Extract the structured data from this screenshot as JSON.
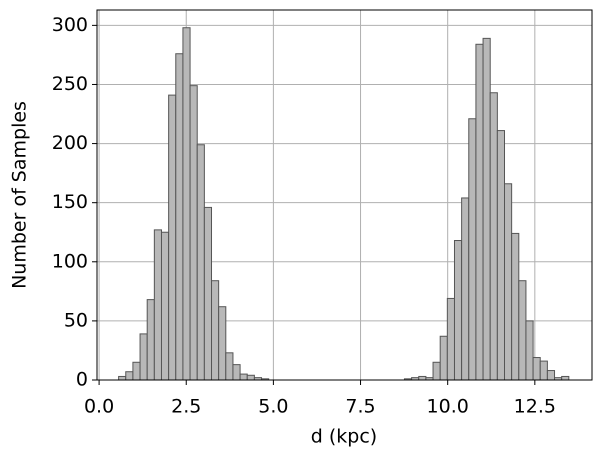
{
  "chart_data": {
    "type": "histogram",
    "xlabel": "d (kpc)",
    "ylabel": "Number of Samples",
    "bins": [
      0.56,
      0.765,
      0.97,
      1.175,
      1.38,
      1.585,
      1.79,
      1.995,
      2.2,
      2.405,
      2.61,
      2.815,
      3.02,
      3.225,
      3.43,
      3.635,
      3.84,
      4.045,
      4.25,
      4.455,
      4.66,
      4.865,
      5.07,
      5.275,
      5.48,
      5.685,
      5.89,
      6.095,
      6.3,
      6.505,
      6.71,
      6.915,
      7.12,
      7.325,
      7.53,
      7.735,
      7.94,
      8.145,
      8.35,
      8.555,
      8.76,
      8.965,
      9.17,
      9.375,
      9.58,
      9.785,
      9.99,
      10.195,
      10.4,
      10.605,
      10.81,
      11.015,
      11.22,
      11.425,
      11.63,
      11.835,
      12.04,
      12.245,
      12.45,
      12.655,
      12.86,
      13.065,
      13.27,
      13.475
    ],
    "values": [
      3,
      7,
      15,
      39,
      68,
      127,
      125,
      241,
      276,
      298,
      249,
      199,
      146,
      84,
      62,
      23,
      13,
      5,
      4,
      2,
      1,
      0,
      0,
      0,
      0,
      0,
      0,
      0,
      0,
      0,
      0,
      0,
      0,
      0,
      0,
      0,
      0,
      0,
      0,
      0,
      1,
      2,
      3,
      2,
      15,
      37,
      69,
      118,
      154,
      221,
      284,
      289,
      243,
      211,
      166,
      124,
      84,
      50,
      19,
      16,
      8,
      2,
      3
    ],
    "color": "#b8b8b8",
    "edgecolor": "#555555",
    "xlim": [
      -0.06,
      14.14
    ],
    "ylim": [
      0,
      313
    ],
    "xticks": [
      {
        "value": 0,
        "label": "0.0"
      },
      {
        "value": 2.5,
        "label": "2.5"
      },
      {
        "value": 5,
        "label": "5.0"
      },
      {
        "value": 7.5,
        "label": "7.5"
      },
      {
        "value": 10,
        "label": "10.0"
      },
      {
        "value": 12.5,
        "label": "12.5"
      }
    ],
    "yticks": [
      0,
      50,
      100,
      150,
      200,
      250,
      300
    ],
    "grid": true
  }
}
